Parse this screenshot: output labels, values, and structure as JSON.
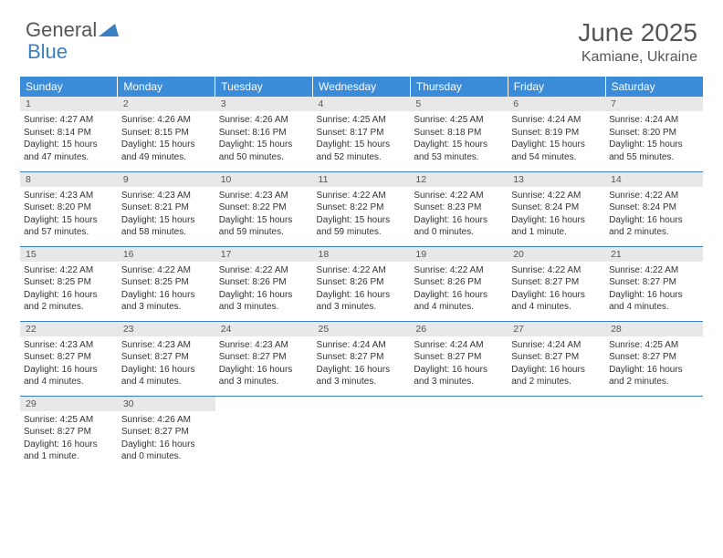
{
  "logo": {
    "text1": "General",
    "text2": "Blue"
  },
  "title": "June 2025",
  "location": "Kamiane, Ukraine",
  "colors": {
    "header_bg": "#3a8bd8",
    "header_fg": "#ffffff",
    "daynum_bg": "#e8e8e8",
    "rule": "#3a7fc4",
    "text": "#333333",
    "muted": "#555555"
  },
  "weekdays": [
    "Sunday",
    "Monday",
    "Tuesday",
    "Wednesday",
    "Thursday",
    "Friday",
    "Saturday"
  ],
  "days": [
    {
      "n": "1",
      "sr": "4:27 AM",
      "ss": "8:14 PM",
      "dl": "15 hours and 47 minutes."
    },
    {
      "n": "2",
      "sr": "4:26 AM",
      "ss": "8:15 PM",
      "dl": "15 hours and 49 minutes."
    },
    {
      "n": "3",
      "sr": "4:26 AM",
      "ss": "8:16 PM",
      "dl": "15 hours and 50 minutes."
    },
    {
      "n": "4",
      "sr": "4:25 AM",
      "ss": "8:17 PM",
      "dl": "15 hours and 52 minutes."
    },
    {
      "n": "5",
      "sr": "4:25 AM",
      "ss": "8:18 PM",
      "dl": "15 hours and 53 minutes."
    },
    {
      "n": "6",
      "sr": "4:24 AM",
      "ss": "8:19 PM",
      "dl": "15 hours and 54 minutes."
    },
    {
      "n": "7",
      "sr": "4:24 AM",
      "ss": "8:20 PM",
      "dl": "15 hours and 55 minutes."
    },
    {
      "n": "8",
      "sr": "4:23 AM",
      "ss": "8:20 PM",
      "dl": "15 hours and 57 minutes."
    },
    {
      "n": "9",
      "sr": "4:23 AM",
      "ss": "8:21 PM",
      "dl": "15 hours and 58 minutes."
    },
    {
      "n": "10",
      "sr": "4:23 AM",
      "ss": "8:22 PM",
      "dl": "15 hours and 59 minutes."
    },
    {
      "n": "11",
      "sr": "4:22 AM",
      "ss": "8:22 PM",
      "dl": "15 hours and 59 minutes."
    },
    {
      "n": "12",
      "sr": "4:22 AM",
      "ss": "8:23 PM",
      "dl": "16 hours and 0 minutes."
    },
    {
      "n": "13",
      "sr": "4:22 AM",
      "ss": "8:24 PM",
      "dl": "16 hours and 1 minute."
    },
    {
      "n": "14",
      "sr": "4:22 AM",
      "ss": "8:24 PM",
      "dl": "16 hours and 2 minutes."
    },
    {
      "n": "15",
      "sr": "4:22 AM",
      "ss": "8:25 PM",
      "dl": "16 hours and 2 minutes."
    },
    {
      "n": "16",
      "sr": "4:22 AM",
      "ss": "8:25 PM",
      "dl": "16 hours and 3 minutes."
    },
    {
      "n": "17",
      "sr": "4:22 AM",
      "ss": "8:26 PM",
      "dl": "16 hours and 3 minutes."
    },
    {
      "n": "18",
      "sr": "4:22 AM",
      "ss": "8:26 PM",
      "dl": "16 hours and 3 minutes."
    },
    {
      "n": "19",
      "sr": "4:22 AM",
      "ss": "8:26 PM",
      "dl": "16 hours and 4 minutes."
    },
    {
      "n": "20",
      "sr": "4:22 AM",
      "ss": "8:27 PM",
      "dl": "16 hours and 4 minutes."
    },
    {
      "n": "21",
      "sr": "4:22 AM",
      "ss": "8:27 PM",
      "dl": "16 hours and 4 minutes."
    },
    {
      "n": "22",
      "sr": "4:23 AM",
      "ss": "8:27 PM",
      "dl": "16 hours and 4 minutes."
    },
    {
      "n": "23",
      "sr": "4:23 AM",
      "ss": "8:27 PM",
      "dl": "16 hours and 4 minutes."
    },
    {
      "n": "24",
      "sr": "4:23 AM",
      "ss": "8:27 PM",
      "dl": "16 hours and 3 minutes."
    },
    {
      "n": "25",
      "sr": "4:24 AM",
      "ss": "8:27 PM",
      "dl": "16 hours and 3 minutes."
    },
    {
      "n": "26",
      "sr": "4:24 AM",
      "ss": "8:27 PM",
      "dl": "16 hours and 3 minutes."
    },
    {
      "n": "27",
      "sr": "4:24 AM",
      "ss": "8:27 PM",
      "dl": "16 hours and 2 minutes."
    },
    {
      "n": "28",
      "sr": "4:25 AM",
      "ss": "8:27 PM",
      "dl": "16 hours and 2 minutes."
    },
    {
      "n": "29",
      "sr": "4:25 AM",
      "ss": "8:27 PM",
      "dl": "16 hours and 1 minute."
    },
    {
      "n": "30",
      "sr": "4:26 AM",
      "ss": "8:27 PM",
      "dl": "16 hours and 0 minutes."
    }
  ],
  "labels": {
    "sunrise": "Sunrise:",
    "sunset": "Sunset:",
    "daylight": "Daylight:"
  }
}
